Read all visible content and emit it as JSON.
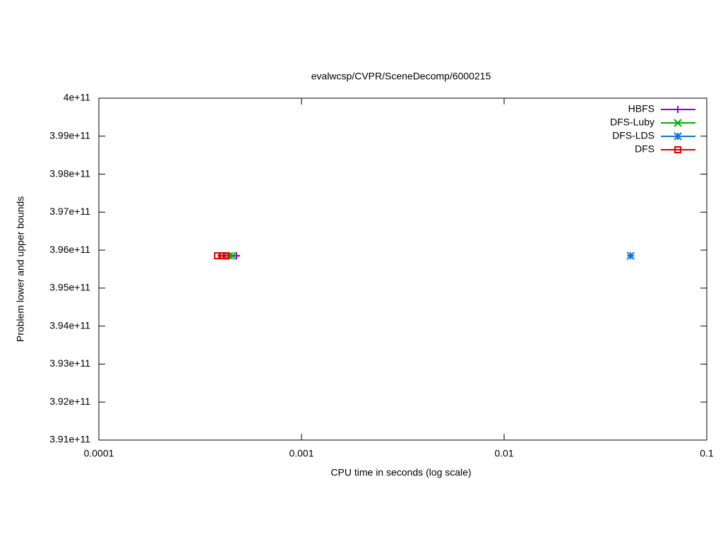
{
  "chart_data": {
    "type": "scatter",
    "title": "evalwcsp/CVPR/SceneDecomp/6000215",
    "xlabel": "CPU time in seconds (log scale)",
    "ylabel": "Problem lower and upper bounds",
    "xscale": "log",
    "xlim": [
      0.0001,
      0.1
    ],
    "xticks": [
      0.0001,
      0.001,
      0.01,
      0.1
    ],
    "ylim": [
      391000000000,
      400000000000
    ],
    "yticks": [
      {
        "value": 391000000000,
        "label": "3.91e+11"
      },
      {
        "value": 392000000000,
        "label": "3.92e+11"
      },
      {
        "value": 393000000000,
        "label": "3.93e+11"
      },
      {
        "value": 394000000000,
        "label": "3.94e+11"
      },
      {
        "value": 395000000000,
        "label": "3.95e+11"
      },
      {
        "value": 396000000000,
        "label": "3.96e+11"
      },
      {
        "value": 397000000000,
        "label": "3.97e+11"
      },
      {
        "value": 398000000000,
        "label": "3.98e+11"
      },
      {
        "value": 399000000000,
        "label": "3.99e+11"
      },
      {
        "value": 400000000000,
        "label": "4e+11"
      }
    ],
    "legend": "top-right",
    "series": [
      {
        "name": "HBFS",
        "color": "#9400d3",
        "marker": "plus",
        "x": [
          0.00042,
          0.000478
        ],
        "values": [
          395850000000,
          395850000000
        ]
      },
      {
        "name": "DFS-Luby",
        "color": "#00b000",
        "marker": "cross",
        "x": [
          0.00044,
          0.000455
        ],
        "values": [
          395850000000,
          395850000000
        ]
      },
      {
        "name": "DFS-LDS",
        "color": "#0a72e0",
        "marker": "star",
        "x": [
          0.0421
        ],
        "values": [
          395850000000
        ]
      },
      {
        "name": "DFS",
        "color": "#e00000",
        "marker": "square",
        "x": [
          0.000385,
          0.000405,
          0.000424
        ],
        "values": [
          395850000000,
          395850000000,
          395850000000
        ]
      }
    ]
  }
}
